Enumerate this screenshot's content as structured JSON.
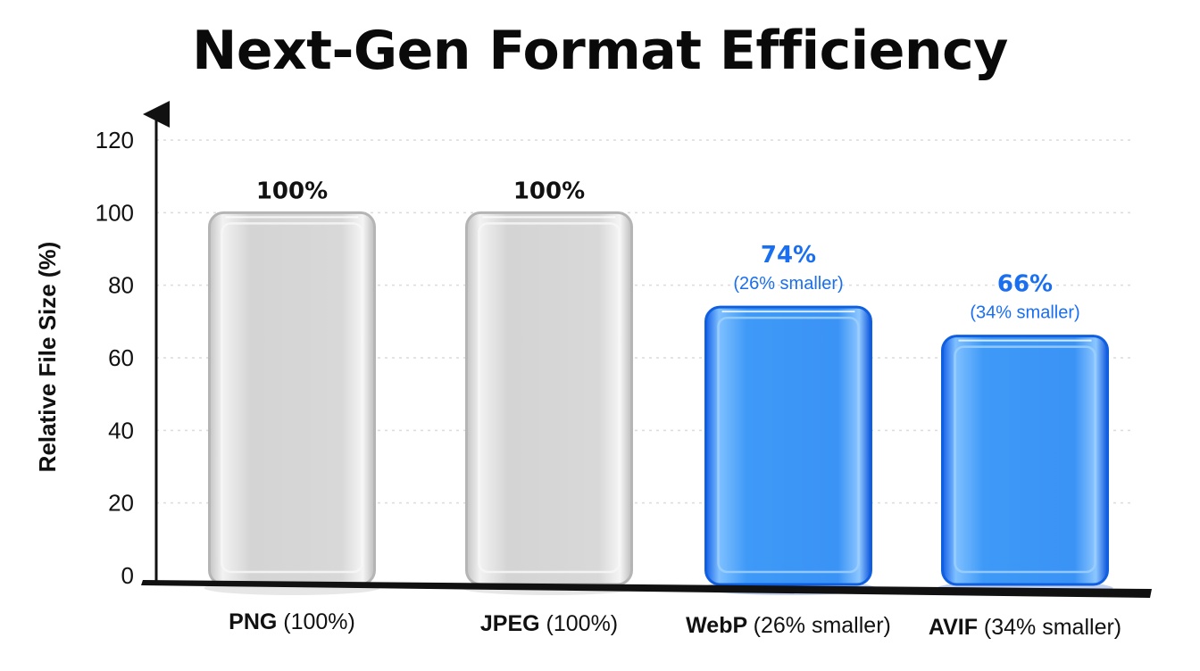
{
  "chart_data": {
    "type": "bar",
    "title": "Next-Gen Format Efficiency",
    "xlabel": "",
    "ylabel": "Relative File Size (%)",
    "ylim": [
      0,
      120
    ],
    "yticks": [
      0,
      20,
      40,
      60,
      80,
      100,
      120
    ],
    "grid": true,
    "categories": [
      {
        "name": "PNG",
        "note": "(100%)"
      },
      {
        "name": "JPEG",
        "note": "(100%)"
      },
      {
        "name": "WebP",
        "note": "(26% smaller)"
      },
      {
        "name": "AVIF",
        "note": "(34% smaller)"
      }
    ],
    "values": [
      100,
      100,
      74,
      66
    ],
    "value_labels": [
      "100%",
      "100%",
      "74%",
      "66%"
    ],
    "sub_labels": [
      "",
      "",
      "(26% smaller)",
      "(34% smaller)"
    ],
    "bar_styles": [
      "clear",
      "clear",
      "blue",
      "blue"
    ]
  },
  "colors": {
    "clear_fill": "#d9d9d9",
    "clear_edge": "#b5b5b5",
    "blue_fill": "#2f8cf5",
    "blue_edge": "#0f5fe0",
    "blue_text": "#1a6ff0",
    "grid": "#dcdcdc",
    "axis": "#111111"
  }
}
